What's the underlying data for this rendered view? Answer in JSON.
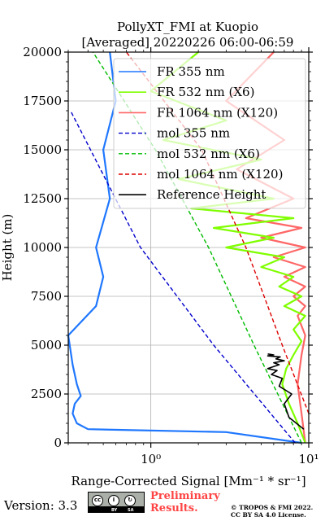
{
  "chart_data": {
    "type": "line",
    "title_lines": [
      "PollyXT_FMI at Kuopio",
      "[Averaged] 20220226 06:00-06:59"
    ],
    "xlabel": "Range-Corrected Signal [Mm⁻¹ * sr⁻¹]",
    "ylabel": "Height (m)",
    "xscale": "log",
    "xlim": [
      0.3,
      10.0
    ],
    "ylim": [
      0,
      20000
    ],
    "xticks": [
      {
        "value": 1,
        "label": "10⁰"
      },
      {
        "value": 10,
        "label": "10¹"
      }
    ],
    "yticks": [
      0,
      2500,
      5000,
      7500,
      10000,
      12500,
      15000,
      17500,
      20000
    ],
    "grid": true,
    "legend_position": "top-right",
    "series": [
      {
        "name": "FR 355 nm",
        "style": "solid",
        "color": "#1f77ff",
        "x": [
          9.0,
          3.0,
          0.4,
          0.34,
          0.32,
          0.33,
          0.36,
          0.34,
          0.32,
          0.3,
          0.45,
          0.5,
          0.45,
          0.55,
          0.5,
          0.6,
          0.55
        ],
        "y": [
          0,
          550,
          700,
          1000,
          1500,
          2000,
          2400,
          3000,
          4000,
          5500,
          7000,
          8500,
          10000,
          12500,
          15000,
          17500,
          20000
        ]
      },
      {
        "name": "FR 532 nm (X6)",
        "style": "solid",
        "color": "#7fff00",
        "x": [
          9.5,
          8.5,
          7.5,
          6.8,
          7.2,
          8.0,
          9.0,
          8.0,
          9.5,
          7.0,
          9.0,
          6.5,
          8.0,
          5.0,
          7.0,
          3.0,
          6.0,
          2.5,
          8.0,
          1.8,
          6.0,
          1.5,
          5.0,
          1.2,
          3.0,
          1.0,
          2.0
        ],
        "y": [
          0,
          1000,
          2000,
          3000,
          3800,
          4500,
          5200,
          5800,
          6500,
          7000,
          7500,
          8000,
          8500,
          9000,
          9500,
          10000,
          10500,
          11000,
          11500,
          12000,
          12500,
          13500,
          14500,
          15500,
          16500,
          18000,
          20000
        ]
      },
      {
        "name": "FR 1064 nm (X120)",
        "style": "solid",
        "color": "#ff6666",
        "x": [
          9.5,
          9.0,
          8.5,
          9.0,
          9.5,
          8.5,
          9.5,
          8.0,
          9.5,
          7.0,
          9.5,
          6.0,
          9.5,
          5.0,
          9.0,
          4.0,
          8.0,
          3.5,
          7.0,
          3.0,
          6.0
        ],
        "y": [
          0,
          1500,
          3000,
          4500,
          5500,
          6500,
          7000,
          7500,
          8000,
          8500,
          9000,
          9500,
          10000,
          10500,
          11000,
          11500,
          12500,
          14000,
          15500,
          17500,
          20000
        ]
      },
      {
        "name": "mol 355 nm",
        "style": "dashed",
        "color": "#0000cc",
        "x": [
          8.2,
          2.5,
          0.86,
          0.31
        ],
        "y": [
          0,
          5000,
          10000,
          17000
        ]
      },
      {
        "name": "mol 532 nm (X6)",
        "style": "dashed",
        "color": "#00bb00",
        "x": [
          9.0,
          4.5,
          2.32,
          1.07,
          0.43
        ],
        "y": [
          0,
          5000,
          10000,
          15000,
          20000
        ]
      },
      {
        "name": "mol 1064 nm (X120)",
        "style": "dashed",
        "color": "#dd0000",
        "x": [
          10.0,
          6.8,
          4.0,
          2.1,
          0.7
        ],
        "y": [
          1500,
          5000,
          10000,
          15000,
          20000
        ]
      },
      {
        "name": "Reference Height",
        "style": "solid",
        "color": "#000000",
        "x": [
          9.3,
          7.5,
          7.0,
          7.8,
          6.5,
          6.8,
          5.8,
          6.3,
          5.5,
          6.5,
          6.0,
          7.0,
          6.2,
          6.6,
          5.5,
          6.0,
          5.5
        ],
        "y": [
          700,
          1300,
          2000,
          2500,
          2900,
          3300,
          3500,
          3700,
          3800,
          4000,
          4100,
          4200,
          4300,
          4400,
          4450,
          4500,
          4550
        ]
      }
    ]
  },
  "footer": {
    "version": "Version: 3.3",
    "license_badge": "cc-by-sa-icon",
    "preliminary_lines": [
      "Preliminary",
      "Results."
    ],
    "copyright_lines": [
      "© TROPOS & FMI 2022.",
      "CC BY SA 4.0 License."
    ]
  }
}
